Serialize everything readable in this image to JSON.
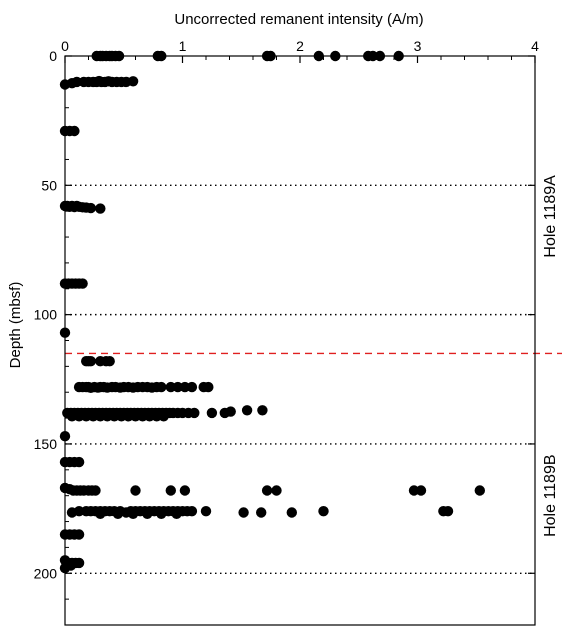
{
  "chart_data": {
    "type": "scatter",
    "xlabel": "Uncorrected remanent intensity (A/m)",
    "ylabel": "Depth (mbsf)",
    "xlim": [
      0,
      4
    ],
    "ylim": [
      0,
      220
    ],
    "y_inverted": true,
    "x_axis_position": "top",
    "x_ticks": [
      0,
      1,
      2,
      3,
      4
    ],
    "y_ticks": [
      0,
      50,
      100,
      150,
      200
    ],
    "grid_lines": [
      50,
      100,
      150,
      200
    ],
    "grid_style": "dotted",
    "hole_boundary": {
      "depth": 115,
      "color": "#e02020",
      "style": "dashed"
    },
    "hole_labels": [
      {
        "text": "Hole 1189A",
        "depth_center": 62
      },
      {
        "text": "Hole 1189B",
        "depth_center": 170
      }
    ],
    "marker_color": "#000000",
    "points": [
      [
        0.27,
        0
      ],
      [
        0.3,
        0
      ],
      [
        0.32,
        0
      ],
      [
        0.35,
        0
      ],
      [
        0.38,
        0
      ],
      [
        0.4,
        0
      ],
      [
        0.43,
        0
      ],
      [
        0.46,
        0
      ],
      [
        0.79,
        0
      ],
      [
        0.82,
        0
      ],
      [
        1.72,
        0
      ],
      [
        1.75,
        0
      ],
      [
        2.16,
        0
      ],
      [
        2.3,
        0
      ],
      [
        2.58,
        0
      ],
      [
        2.62,
        0
      ],
      [
        2.68,
        0
      ],
      [
        2.84,
        0
      ],
      [
        0.0,
        11
      ],
      [
        0.06,
        10.5
      ],
      [
        0.1,
        10
      ],
      [
        0.16,
        10
      ],
      [
        0.2,
        10
      ],
      [
        0.24,
        10
      ],
      [
        0.27,
        10
      ],
      [
        0.29,
        9.7
      ],
      [
        0.31,
        10
      ],
      [
        0.34,
        10
      ],
      [
        0.37,
        9.8
      ],
      [
        0.4,
        10
      ],
      [
        0.44,
        10
      ],
      [
        0.48,
        10
      ],
      [
        0.52,
        10
      ],
      [
        0.58,
        9.8
      ],
      [
        0.0,
        29
      ],
      [
        0.04,
        29
      ],
      [
        0.08,
        29
      ],
      [
        0.0,
        58
      ],
      [
        0.02,
        58
      ],
      [
        0.04,
        58.3
      ],
      [
        0.06,
        58
      ],
      [
        0.08,
        58.4
      ],
      [
        0.1,
        58
      ],
      [
        0.12,
        58.3
      ],
      [
        0.15,
        58.5
      ],
      [
        0.18,
        58.6
      ],
      [
        0.22,
        58.8
      ],
      [
        0.3,
        59
      ],
      [
        0.0,
        88
      ],
      [
        0.03,
        88
      ],
      [
        0.06,
        88
      ],
      [
        0.09,
        88
      ],
      [
        0.12,
        88
      ],
      [
        0.15,
        88
      ],
      [
        0.0,
        107
      ],
      [
        0.18,
        118
      ],
      [
        0.2,
        118
      ],
      [
        0.22,
        118
      ],
      [
        0.3,
        118
      ],
      [
        0.35,
        118
      ],
      [
        0.38,
        118
      ],
      [
        0.12,
        128
      ],
      [
        0.15,
        128
      ],
      [
        0.18,
        128
      ],
      [
        0.2,
        128
      ],
      [
        0.22,
        128.3
      ],
      [
        0.25,
        128
      ],
      [
        0.28,
        128.2
      ],
      [
        0.3,
        128
      ],
      [
        0.33,
        128
      ],
      [
        0.36,
        128.2
      ],
      [
        0.4,
        128
      ],
      [
        0.43,
        128
      ],
      [
        0.47,
        128.2
      ],
      [
        0.5,
        128
      ],
      [
        0.54,
        128
      ],
      [
        0.58,
        128.2
      ],
      [
        0.62,
        128
      ],
      [
        0.66,
        128
      ],
      [
        0.7,
        128
      ],
      [
        0.74,
        128.2
      ],
      [
        0.78,
        128
      ],
      [
        0.82,
        128
      ],
      [
        0.9,
        128
      ],
      [
        0.96,
        128
      ],
      [
        1.02,
        128
      ],
      [
        1.08,
        128
      ],
      [
        1.18,
        128
      ],
      [
        1.22,
        128
      ],
      [
        0.02,
        138
      ],
      [
        0.05,
        138
      ],
      [
        0.08,
        138
      ],
      [
        0.11,
        138
      ],
      [
        0.14,
        138
      ],
      [
        0.17,
        138
      ],
      [
        0.2,
        138
      ],
      [
        0.23,
        138
      ],
      [
        0.26,
        138
      ],
      [
        0.29,
        138
      ],
      [
        0.32,
        138
      ],
      [
        0.35,
        138
      ],
      [
        0.38,
        138
      ],
      [
        0.41,
        138
      ],
      [
        0.44,
        138
      ],
      [
        0.47,
        138
      ],
      [
        0.5,
        138
      ],
      [
        0.53,
        138
      ],
      [
        0.56,
        138
      ],
      [
        0.59,
        138
      ],
      [
        0.62,
        138
      ],
      [
        0.65,
        138
      ],
      [
        0.68,
        138
      ],
      [
        0.71,
        138
      ],
      [
        0.74,
        138
      ],
      [
        0.77,
        138
      ],
      [
        0.8,
        138
      ],
      [
        0.83,
        138
      ],
      [
        0.86,
        138
      ],
      [
        0.89,
        138
      ],
      [
        0.92,
        138
      ],
      [
        0.96,
        138
      ],
      [
        1.0,
        138
      ],
      [
        1.05,
        138
      ],
      [
        1.1,
        138
      ],
      [
        0.06,
        139.3
      ],
      [
        0.12,
        139.3
      ],
      [
        0.18,
        139.3
      ],
      [
        0.24,
        139.3
      ],
      [
        0.3,
        139.3
      ],
      [
        0.36,
        139.3
      ],
      [
        0.42,
        139.3
      ],
      [
        0.48,
        139.3
      ],
      [
        0.54,
        139.3
      ],
      [
        0.6,
        139.3
      ],
      [
        0.66,
        139.3
      ],
      [
        0.72,
        139.3
      ],
      [
        0.78,
        139.3
      ],
      [
        0.84,
        139.3
      ],
      [
        1.25,
        138
      ],
      [
        1.36,
        138
      ],
      [
        1.41,
        137.5
      ],
      [
        1.55,
        137
      ],
      [
        1.68,
        137
      ],
      [
        0.0,
        147
      ],
      [
        0.0,
        157
      ],
      [
        0.04,
        157
      ],
      [
        0.08,
        157
      ],
      [
        0.12,
        157
      ],
      [
        0.0,
        167
      ],
      [
        0.04,
        167.5
      ],
      [
        0.07,
        168
      ],
      [
        0.1,
        168
      ],
      [
        0.13,
        168
      ],
      [
        0.16,
        168
      ],
      [
        0.2,
        168
      ],
      [
        0.23,
        168
      ],
      [
        0.26,
        168
      ],
      [
        0.6,
        168
      ],
      [
        0.9,
        168
      ],
      [
        1.02,
        168
      ],
      [
        1.72,
        168
      ],
      [
        1.8,
        168
      ],
      [
        2.97,
        168
      ],
      [
        3.03,
        168
      ],
      [
        3.53,
        168
      ],
      [
        0.06,
        176.5
      ],
      [
        0.12,
        176
      ],
      [
        0.18,
        176
      ],
      [
        0.22,
        176
      ],
      [
        0.26,
        176
      ],
      [
        0.3,
        176
      ],
      [
        0.34,
        176
      ],
      [
        0.38,
        176
      ],
      [
        0.42,
        176
      ],
      [
        0.47,
        176
      ],
      [
        0.52,
        176.5
      ],
      [
        0.56,
        176
      ],
      [
        0.6,
        176
      ],
      [
        0.64,
        176
      ],
      [
        0.68,
        176
      ],
      [
        0.72,
        176
      ],
      [
        0.76,
        176
      ],
      [
        0.8,
        176
      ],
      [
        0.84,
        176
      ],
      [
        0.88,
        176
      ],
      [
        0.92,
        176
      ],
      [
        0.96,
        176
      ],
      [
        1.0,
        176
      ],
      [
        1.04,
        176
      ],
      [
        1.08,
        176
      ],
      [
        1.2,
        176
      ],
      [
        0.3,
        177
      ],
      [
        0.45,
        177
      ],
      [
        0.58,
        177
      ],
      [
        0.7,
        177
      ],
      [
        0.82,
        177
      ],
      [
        0.95,
        177
      ],
      [
        1.52,
        176.5
      ],
      [
        1.67,
        176.5
      ],
      [
        1.93,
        176.5
      ],
      [
        2.2,
        176
      ],
      [
        3.22,
        176
      ],
      [
        3.26,
        176
      ],
      [
        0.0,
        185
      ],
      [
        0.04,
        185
      ],
      [
        0.08,
        185
      ],
      [
        0.12,
        185
      ],
      [
        0.0,
        195
      ],
      [
        0.03,
        196
      ],
      [
        0.06,
        196
      ],
      [
        0.09,
        196
      ],
      [
        0.12,
        196
      ],
      [
        0.02,
        197
      ],
      [
        0.05,
        197
      ],
      [
        0.0,
        198
      ]
    ]
  }
}
